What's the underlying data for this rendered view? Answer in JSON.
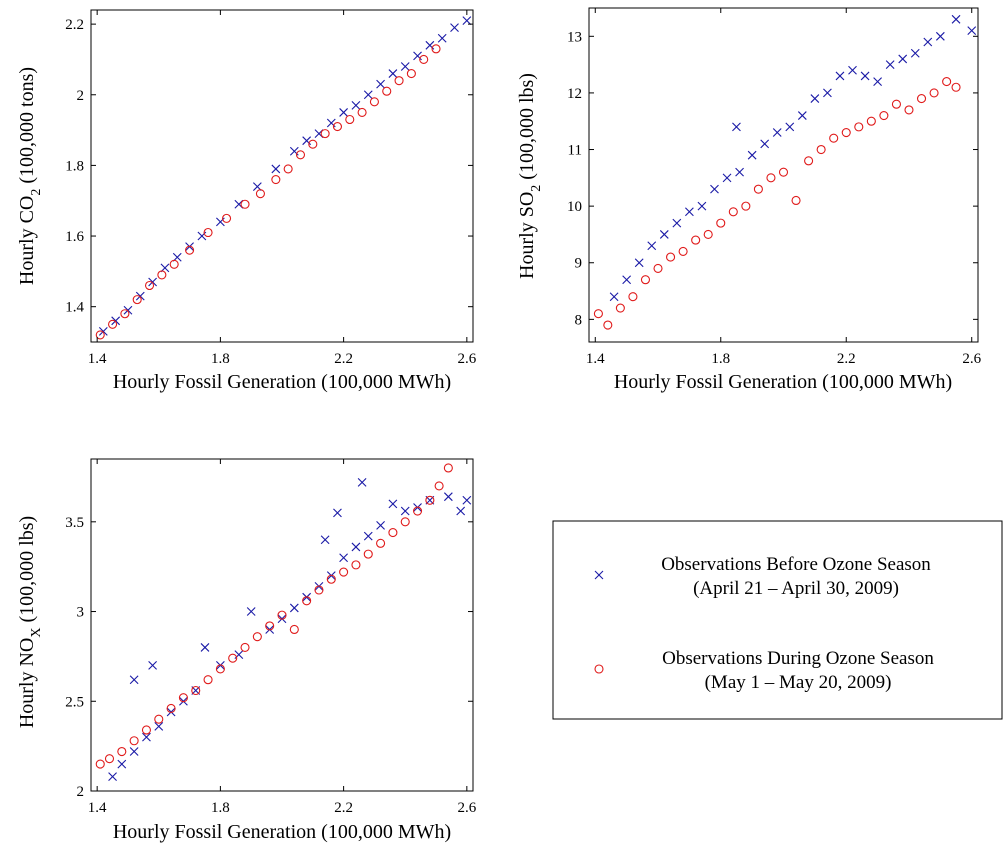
{
  "legend": {
    "series_a_line1": "Observations Before Ozone Season",
    "series_a_line2": "(April 21 – April 30, 2009)",
    "series_b_line1": "Observations During Ozone Season",
    "series_b_line2": "(May 1 – May 20, 2009)"
  },
  "colors": {
    "before": "#1a1aa6",
    "during": "#e01b1b",
    "axis": "#000000"
  },
  "chart_data": [
    {
      "type": "scatter",
      "id": "co2",
      "xlabel": "Hourly Fossil Generation (100,000 MWh)",
      "ylabel": {
        "prefix": "Hourly CO",
        "sub": "2",
        "suffix": " (100,000 tons)"
      },
      "xlim": [
        1.38,
        2.62
      ],
      "ylim": [
        1.3,
        2.24
      ],
      "xticks": [
        1.4,
        1.8,
        2.2,
        2.6
      ],
      "xtick_labels": [
        "1.4",
        "1.8",
        "2.2",
        "2.6"
      ],
      "yticks": [
        1.4,
        1.6,
        1.8,
        2.0,
        2.2
      ],
      "ytick_labels": [
        "1.4",
        "1.6",
        "1.8",
        "2",
        "2.2"
      ],
      "series": [
        {
          "key": "before",
          "marker": "x",
          "points": [
            [
              1.42,
              1.33
            ],
            [
              1.46,
              1.36
            ],
            [
              1.5,
              1.39
            ],
            [
              1.54,
              1.43
            ],
            [
              1.58,
              1.47
            ],
            [
              1.62,
              1.51
            ],
            [
              1.66,
              1.54
            ],
            [
              1.7,
              1.57
            ],
            [
              1.74,
              1.6
            ],
            [
              1.8,
              1.64
            ],
            [
              1.86,
              1.69
            ],
            [
              1.92,
              1.74
            ],
            [
              1.98,
              1.79
            ],
            [
              2.04,
              1.84
            ],
            [
              2.08,
              1.87
            ],
            [
              2.12,
              1.89
            ],
            [
              2.16,
              1.92
            ],
            [
              2.2,
              1.95
            ],
            [
              2.24,
              1.97
            ],
            [
              2.28,
              2.0
            ],
            [
              2.32,
              2.03
            ],
            [
              2.36,
              2.06
            ],
            [
              2.4,
              2.08
            ],
            [
              2.44,
              2.11
            ],
            [
              2.48,
              2.14
            ],
            [
              2.52,
              2.16
            ],
            [
              2.56,
              2.19
            ],
            [
              2.6,
              2.21
            ]
          ]
        },
        {
          "key": "during",
          "marker": "o",
          "points": [
            [
              1.41,
              1.32
            ],
            [
              1.45,
              1.35
            ],
            [
              1.49,
              1.38
            ],
            [
              1.53,
              1.42
            ],
            [
              1.57,
              1.46
            ],
            [
              1.61,
              1.49
            ],
            [
              1.65,
              1.52
            ],
            [
              1.7,
              1.56
            ],
            [
              1.76,
              1.61
            ],
            [
              1.82,
              1.65
            ],
            [
              1.88,
              1.69
            ],
            [
              1.93,
              1.72
            ],
            [
              1.98,
              1.76
            ],
            [
              2.02,
              1.79
            ],
            [
              2.06,
              1.83
            ],
            [
              2.1,
              1.86
            ],
            [
              2.14,
              1.89
            ],
            [
              2.18,
              1.91
            ],
            [
              2.22,
              1.93
            ],
            [
              2.26,
              1.95
            ],
            [
              2.3,
              1.98
            ],
            [
              2.34,
              2.01
            ],
            [
              2.38,
              2.04
            ],
            [
              2.42,
              2.06
            ],
            [
              2.46,
              2.1
            ],
            [
              2.5,
              2.13
            ]
          ]
        }
      ]
    },
    {
      "type": "scatter",
      "id": "so2",
      "xlabel": "Hourly Fossil Generation (100,000 MWh)",
      "ylabel": {
        "prefix": "Hourly SO",
        "sub": "2",
        "suffix": " (100,000 lbs)"
      },
      "xlim": [
        1.38,
        2.62
      ],
      "ylim": [
        7.6,
        13.5
      ],
      "xticks": [
        1.4,
        1.8,
        2.2,
        2.6
      ],
      "xtick_labels": [
        "1.4",
        "1.8",
        "2.2",
        "2.6"
      ],
      "yticks": [
        8,
        9,
        10,
        11,
        12,
        13
      ],
      "ytick_labels": [
        "8",
        "9",
        "10",
        "11",
        "12",
        "13"
      ],
      "series": [
        {
          "key": "before",
          "marker": "x",
          "points": [
            [
              1.46,
              8.4
            ],
            [
              1.5,
              8.7
            ],
            [
              1.54,
              9.0
            ],
            [
              1.58,
              9.3
            ],
            [
              1.62,
              9.5
            ],
            [
              1.66,
              9.7
            ],
            [
              1.7,
              9.9
            ],
            [
              1.74,
              10.0
            ],
            [
              1.78,
              10.3
            ],
            [
              1.82,
              10.5
            ],
            [
              1.86,
              10.6
            ],
            [
              1.9,
              10.9
            ],
            [
              1.94,
              11.1
            ],
            [
              1.98,
              11.3
            ],
            [
              2.02,
              11.4
            ],
            [
              2.06,
              11.6
            ],
            [
              2.1,
              11.9
            ],
            [
              2.14,
              12.0
            ],
            [
              2.18,
              12.3
            ],
            [
              2.22,
              12.4
            ],
            [
              2.26,
              12.3
            ],
            [
              2.3,
              12.2
            ],
            [
              2.34,
              12.5
            ],
            [
              2.38,
              12.6
            ],
            [
              2.42,
              12.7
            ],
            [
              2.46,
              12.9
            ],
            [
              2.5,
              13.0
            ],
            [
              2.55,
              13.3
            ],
            [
              2.6,
              13.1
            ],
            [
              1.85,
              11.4
            ]
          ]
        },
        {
          "key": "during",
          "marker": "o",
          "points": [
            [
              1.41,
              8.1
            ],
            [
              1.44,
              7.9
            ],
            [
              1.48,
              8.2
            ],
            [
              1.52,
              8.4
            ],
            [
              1.56,
              8.7
            ],
            [
              1.6,
              8.9
            ],
            [
              1.64,
              9.1
            ],
            [
              1.68,
              9.2
            ],
            [
              1.72,
              9.4
            ],
            [
              1.76,
              9.5
            ],
            [
              1.8,
              9.7
            ],
            [
              1.84,
              9.9
            ],
            [
              1.88,
              10.0
            ],
            [
              1.92,
              10.3
            ],
            [
              1.96,
              10.5
            ],
            [
              2.0,
              10.6
            ],
            [
              2.04,
              10.1
            ],
            [
              2.08,
              10.8
            ],
            [
              2.12,
              11.0
            ],
            [
              2.16,
              11.2
            ],
            [
              2.2,
              11.3
            ],
            [
              2.24,
              11.4
            ],
            [
              2.28,
              11.5
            ],
            [
              2.32,
              11.6
            ],
            [
              2.36,
              11.8
            ],
            [
              2.4,
              11.7
            ],
            [
              2.44,
              11.9
            ],
            [
              2.48,
              12.0
            ],
            [
              2.52,
              12.2
            ],
            [
              2.55,
              12.1
            ]
          ]
        }
      ]
    },
    {
      "type": "scatter",
      "id": "nox",
      "xlabel": "Hourly Fossil Generation (100,000 MWh)",
      "ylabel": {
        "prefix": "Hourly NO",
        "sub": "X",
        "suffix": " (100,000 lbs)"
      },
      "xlim": [
        1.38,
        2.62
      ],
      "ylim": [
        2.0,
        3.85
      ],
      "xticks": [
        1.4,
        1.8,
        2.2,
        2.6
      ],
      "xtick_labels": [
        "1.4",
        "1.8",
        "2.2",
        "2.6"
      ],
      "yticks": [
        2.0,
        2.5,
        3.0,
        3.5
      ],
      "ytick_labels": [
        "2",
        "2.5",
        "3",
        "3.5"
      ],
      "series": [
        {
          "key": "before",
          "marker": "x",
          "points": [
            [
              1.45,
              2.08
            ],
            [
              1.48,
              2.15
            ],
            [
              1.52,
              2.22
            ],
            [
              1.56,
              2.3
            ],
            [
              1.6,
              2.36
            ],
            [
              1.64,
              2.44
            ],
            [
              1.68,
              2.5
            ],
            [
              1.72,
              2.56
            ],
            [
              1.52,
              2.62
            ],
            [
              1.58,
              2.7
            ],
            [
              1.75,
              2.8
            ],
            [
              1.8,
              2.7
            ],
            [
              1.86,
              2.76
            ],
            [
              1.9,
              3.0
            ],
            [
              1.96,
              2.9
            ],
            [
              2.0,
              2.96
            ],
            [
              2.04,
              3.02
            ],
            [
              2.08,
              3.08
            ],
            [
              2.12,
              3.14
            ],
            [
              2.16,
              3.2
            ],
            [
              2.2,
              3.3
            ],
            [
              2.18,
              3.55
            ],
            [
              2.14,
              3.4
            ],
            [
              2.24,
              3.36
            ],
            [
              2.28,
              3.42
            ],
            [
              2.32,
              3.48
            ],
            [
              2.36,
              3.6
            ],
            [
              2.4,
              3.56
            ],
            [
              2.44,
              3.58
            ],
            [
              2.48,
              3.62
            ],
            [
              2.54,
              3.64
            ],
            [
              2.58,
              3.56
            ],
            [
              2.6,
              3.62
            ],
            [
              2.26,
              3.72
            ]
          ]
        },
        {
          "key": "during",
          "marker": "o",
          "points": [
            [
              1.41,
              2.15
            ],
            [
              1.44,
              2.18
            ],
            [
              1.48,
              2.22
            ],
            [
              1.52,
              2.28
            ],
            [
              1.56,
              2.34
            ],
            [
              1.6,
              2.4
            ],
            [
              1.64,
              2.46
            ],
            [
              1.68,
              2.52
            ],
            [
              1.72,
              2.56
            ],
            [
              1.76,
              2.62
            ],
            [
              1.8,
              2.68
            ],
            [
              1.84,
              2.74
            ],
            [
              1.88,
              2.8
            ],
            [
              1.92,
              2.86
            ],
            [
              1.96,
              2.92
            ],
            [
              2.0,
              2.98
            ],
            [
              2.04,
              2.9
            ],
            [
              2.08,
              3.06
            ],
            [
              2.12,
              3.12
            ],
            [
              2.16,
              3.18
            ],
            [
              2.2,
              3.22
            ],
            [
              2.24,
              3.26
            ],
            [
              2.28,
              3.32
            ],
            [
              2.32,
              3.38
            ],
            [
              2.36,
              3.44
            ],
            [
              2.4,
              3.5
            ],
            [
              2.44,
              3.56
            ],
            [
              2.48,
              3.62
            ],
            [
              2.51,
              3.7
            ],
            [
              2.54,
              3.8
            ]
          ]
        }
      ]
    }
  ]
}
